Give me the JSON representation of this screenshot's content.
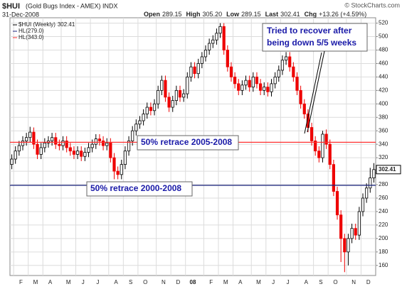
{
  "header": {
    "symbol": "$HUI",
    "name": "(Gold Bugs Index - AMEX) INDX",
    "date": "31-Dec-2008",
    "copyright": "© StockCharts.com",
    "stats": [
      {
        "label": "Open",
        "value": "289.15"
      },
      {
        "label": "High",
        "value": "305.20"
      },
      {
        "label": "Low",
        "value": "289.15"
      },
      {
        "label": "Last",
        "value": "302.41"
      },
      {
        "label": "Chg",
        "value": "+13.26 (+4.59%)"
      }
    ]
  },
  "chart_data": {
    "type": "candlestick",
    "legend": "$HUI (Weekly)",
    "last": 302.41,
    "up_color": "#000000",
    "down_color": "#ee0000",
    "grid": true,
    "ylim": [
      145,
      528
    ],
    "yticks": [
      160,
      180,
      200,
      220,
      240,
      260,
      280,
      300,
      320,
      340,
      360,
      380,
      400,
      420,
      440,
      460,
      480,
      500,
      520
    ],
    "categories": [
      null,
      "F",
      null,
      null,
      null,
      "M",
      null,
      null,
      null,
      "A",
      null,
      null,
      null,
      null,
      "M",
      null,
      null,
      null,
      "J",
      null,
      null,
      null,
      "J",
      null,
      null,
      null,
      null,
      "A",
      null,
      null,
      null,
      "S",
      null,
      null,
      null,
      "O",
      null,
      null,
      null,
      null,
      "N",
      null,
      null,
      null,
      "D",
      null,
      null,
      null,
      "08",
      null,
      null,
      null,
      null,
      "F",
      null,
      null,
      null,
      "M",
      null,
      null,
      null,
      "A",
      null,
      null,
      null,
      null,
      "M",
      null,
      null,
      null,
      "J",
      null,
      null,
      null,
      "J",
      null,
      null,
      null,
      null,
      "A",
      null,
      null,
      null,
      "S",
      null,
      null,
      null,
      "O",
      null,
      null,
      null,
      null,
      "N",
      null,
      null,
      null,
      "D",
      null,
      null,
      null
    ],
    "open": [
      310,
      318,
      330,
      338,
      345,
      350,
      358,
      340,
      325,
      335,
      342,
      345,
      350,
      340,
      338,
      345,
      335,
      330,
      325,
      330,
      322,
      328,
      335,
      340,
      348,
      345,
      338,
      342,
      320,
      300,
      295,
      310,
      330,
      345,
      360,
      370,
      375,
      385,
      395,
      390,
      400,
      420,
      435,
      410,
      395,
      405,
      420,
      410,
      415,
      440,
      455,
      445,
      460,
      470,
      480,
      490,
      495,
      505,
      515,
      480,
      455,
      440,
      430,
      420,
      428,
      435,
      425,
      440,
      430,
      420,
      425,
      418,
      430,
      440,
      450,
      465,
      470,
      455,
      440,
      420,
      400,
      385,
      365,
      345,
      330,
      320,
      355,
      340,
      310,
      270,
      235,
      200,
      180,
      200,
      215,
      205,
      240,
      260,
      275,
      290
    ],
    "high": [
      325,
      337,
      345,
      352,
      357,
      366,
      365,
      347,
      342,
      349,
      352,
      357,
      357,
      347,
      352,
      352,
      342,
      337,
      337,
      337,
      335,
      342,
      347,
      355,
      355,
      352,
      349,
      349,
      327,
      307,
      317,
      337,
      352,
      367,
      377,
      382,
      392,
      402,
      402,
      407,
      427,
      442,
      442,
      417,
      412,
      427,
      427,
      422,
      447,
      462,
      462,
      467,
      477,
      487,
      497,
      502,
      512,
      520,
      520,
      487,
      462,
      447,
      437,
      435,
      442,
      442,
      447,
      447,
      437,
      432,
      432,
      437,
      447,
      457,
      472,
      477,
      477,
      462,
      447,
      427,
      407,
      392,
      372,
      352,
      337,
      360,
      362,
      347,
      317,
      277,
      242,
      207,
      207,
      222,
      222,
      247,
      267,
      282,
      305,
      312
    ],
    "low": [
      303,
      311,
      323,
      331,
      338,
      343,
      333,
      318,
      318,
      328,
      335,
      338,
      333,
      331,
      331,
      328,
      323,
      318,
      318,
      315,
      315,
      321,
      328,
      333,
      338,
      331,
      331,
      313,
      288,
      288,
      288,
      303,
      323,
      338,
      353,
      363,
      368,
      378,
      383,
      383,
      393,
      413,
      403,
      388,
      388,
      398,
      403,
      403,
      408,
      433,
      438,
      438,
      453,
      463,
      473,
      483,
      488,
      498,
      473,
      448,
      433,
      423,
      413,
      413,
      421,
      418,
      418,
      423,
      413,
      413,
      411,
      411,
      423,
      433,
      443,
      458,
      448,
      433,
      413,
      393,
      378,
      358,
      338,
      323,
      313,
      313,
      333,
      303,
      263,
      228,
      165,
      150,
      160,
      193,
      198,
      198,
      233,
      253,
      268,
      283
    ],
    "close": [
      318,
      330,
      338,
      345,
      350,
      358,
      340,
      325,
      335,
      342,
      345,
      350,
      340,
      338,
      345,
      335,
      330,
      325,
      330,
      322,
      328,
      335,
      340,
      348,
      345,
      338,
      342,
      320,
      300,
      295,
      310,
      330,
      345,
      360,
      370,
      375,
      385,
      395,
      390,
      400,
      420,
      435,
      410,
      395,
      405,
      420,
      410,
      415,
      440,
      455,
      445,
      460,
      470,
      480,
      490,
      495,
      505,
      515,
      480,
      455,
      440,
      430,
      420,
      428,
      435,
      425,
      440,
      430,
      420,
      425,
      418,
      430,
      440,
      450,
      465,
      470,
      455,
      440,
      420,
      400,
      385,
      365,
      345,
      330,
      320,
      355,
      340,
      310,
      270,
      235,
      200,
      180,
      200,
      215,
      205,
      240,
      260,
      275,
      290,
      302.41
    ],
    "hlines": [
      {
        "value": 279,
        "label": "HL(279.0)",
        "color": "#1a237e"
      },
      {
        "value": 343,
        "label": "HL(343.0)",
        "color": "#ff3030"
      }
    ],
    "annotations": [
      {
        "text": "50% retrace 2005-2008"
      },
      {
        "text": "50% retrace 2000-2008"
      },
      {
        "lines": [
          "Tried to recover after",
          "being down 5/5 weeks"
        ]
      }
    ]
  }
}
